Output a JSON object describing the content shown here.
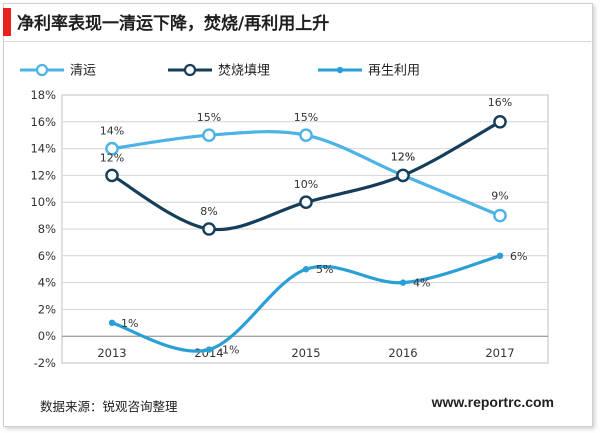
{
  "title": "净利率表现一清运下降，焚烧/再利用上升",
  "source": "数据来源：锐观咨询整理",
  "website": "www.reportrc.com",
  "colors": {
    "accent": "#e8211d",
    "qingyun": "#4db3e6",
    "fenshao": "#163e5a",
    "zaili": "#2a9fd6"
  },
  "chart_data": {
    "type": "line",
    "categories": [
      "2013",
      "2014",
      "2015",
      "2016",
      "2017"
    ],
    "ylim": [
      -2,
      18
    ],
    "ytick_step": 2,
    "ytick_labels": [
      "-2%",
      "0%",
      "2%",
      "4%",
      "6%",
      "8%",
      "10%",
      "12%",
      "14%",
      "16%",
      "18%"
    ],
    "grid": true,
    "legend_position": "top-left",
    "series": [
      {
        "name": "清运",
        "values": [
          14,
          15,
          15,
          12,
          9
        ],
        "labels": [
          "14%",
          "15%",
          "15%",
          "12%",
          "9%"
        ],
        "color": "#4db3e6",
        "marker": "hollow-large"
      },
      {
        "name": "焚烧填埋",
        "values": [
          12,
          8,
          10,
          12,
          16
        ],
        "labels": [
          "12%",
          "8%",
          "10%",
          "12%",
          "16%"
        ],
        "color": "#163e5a",
        "marker": "hollow-large"
      },
      {
        "name": "再生利用",
        "values": [
          1,
          -1,
          5,
          4,
          6
        ],
        "labels": [
          "1%",
          "-1%",
          "5%",
          "4%",
          "6%"
        ],
        "color": "#2a9fd6",
        "marker": "dot"
      }
    ]
  }
}
